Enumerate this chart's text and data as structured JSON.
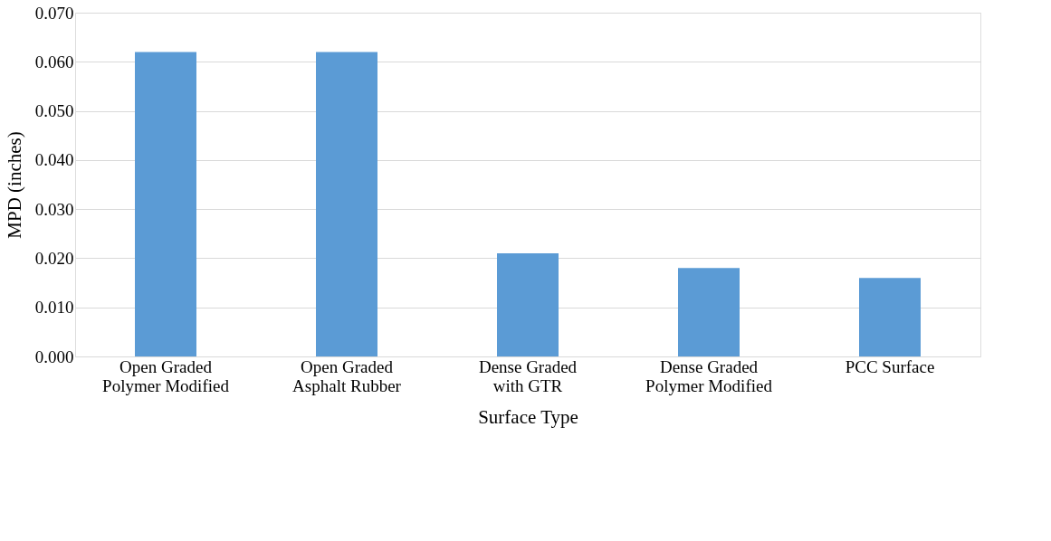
{
  "chart_data": {
    "type": "bar",
    "xlabel": "Surface Type",
    "ylabel": "MPD (inches)",
    "categories": [
      "Open Graded Polymer Modified",
      "Open Graded Asphalt Rubber",
      "Dense Graded with GTR",
      "Dense Graded Polymer Modified",
      "PCC Surface"
    ],
    "values": [
      0.062,
      0.062,
      0.021,
      0.018,
      0.016
    ],
    "color": "#5b9bd5",
    "ylim": [
      0,
      0.07
    ],
    "yticks": [
      {
        "value": 0,
        "label": "0.000"
      },
      {
        "value": 0.01,
        "label": "0.010"
      },
      {
        "value": 0.02,
        "label": "0.020"
      },
      {
        "value": 0.03,
        "label": "0.030"
      },
      {
        "value": 0.04,
        "label": "0.040"
      },
      {
        "value": 0.05,
        "label": "0.050"
      },
      {
        "value": 0.06,
        "label": "0.060"
      },
      {
        "value": 0.07,
        "label": "0.070"
      }
    ],
    "grid": "y"
  }
}
